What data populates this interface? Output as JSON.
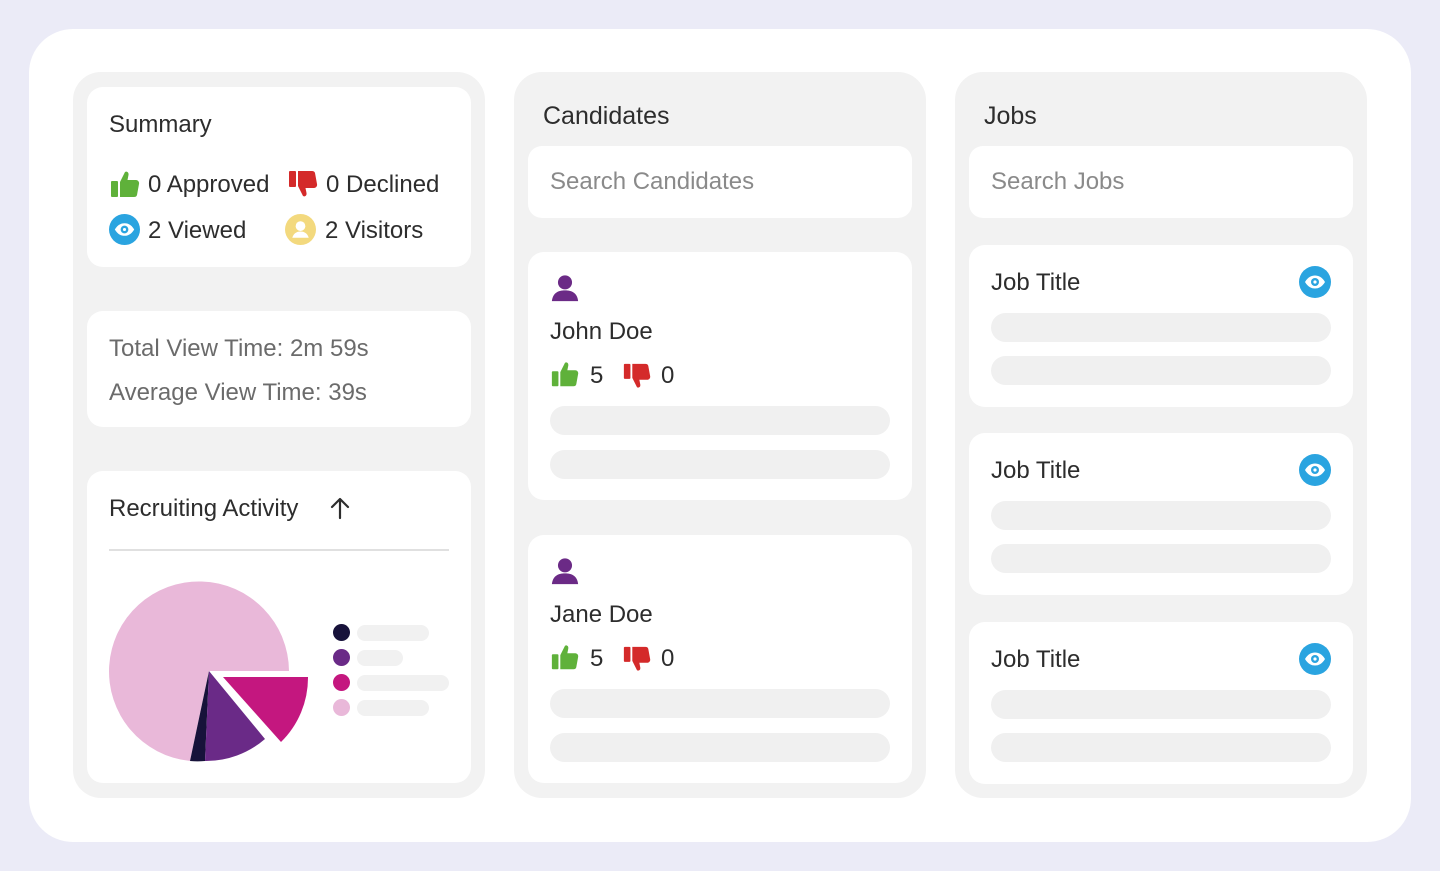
{
  "summary": {
    "title": "Summary",
    "approved_label": "0 Approved",
    "declined_label": "0 Declined",
    "viewed_label": "2 Viewed",
    "visitors_label": "2 Visitors"
  },
  "view_time": {
    "total_label": "Total View Time: 2m 59s",
    "average_label": "Average View Time: 39s"
  },
  "recruiting": {
    "title": "Recruiting Activity",
    "legend_colors": [
      "#17123a",
      "#6a2a87",
      "#c4177f",
      "#e9b8d9"
    ]
  },
  "candidates": {
    "title": "Candidates",
    "search_placeholder": "Search Candidates",
    "items": [
      {
        "name": "John Doe",
        "likes": "5",
        "dislikes": "0"
      },
      {
        "name": "Jane Doe",
        "likes": "5",
        "dislikes": "0"
      }
    ]
  },
  "jobs": {
    "title": "Jobs",
    "search_placeholder": "Search Jobs",
    "items": [
      {
        "title": "Job Title"
      },
      {
        "title": "Job Title"
      },
      {
        "title": "Job Title"
      }
    ]
  },
  "colors": {
    "approve_green": "#5fb13a",
    "decline_red": "#d42a2a",
    "eye_blue": "#2aa4e0",
    "visitor_yellow": "#f3d97e",
    "person_purple": "#6b2a86"
  },
  "icons": {
    "approve": "thumbs-up-icon",
    "decline": "thumbs-down-icon",
    "viewed": "eye-icon",
    "visitor": "user-circle-icon",
    "person": "person-icon",
    "arrow": "arrow-up-icon"
  }
}
